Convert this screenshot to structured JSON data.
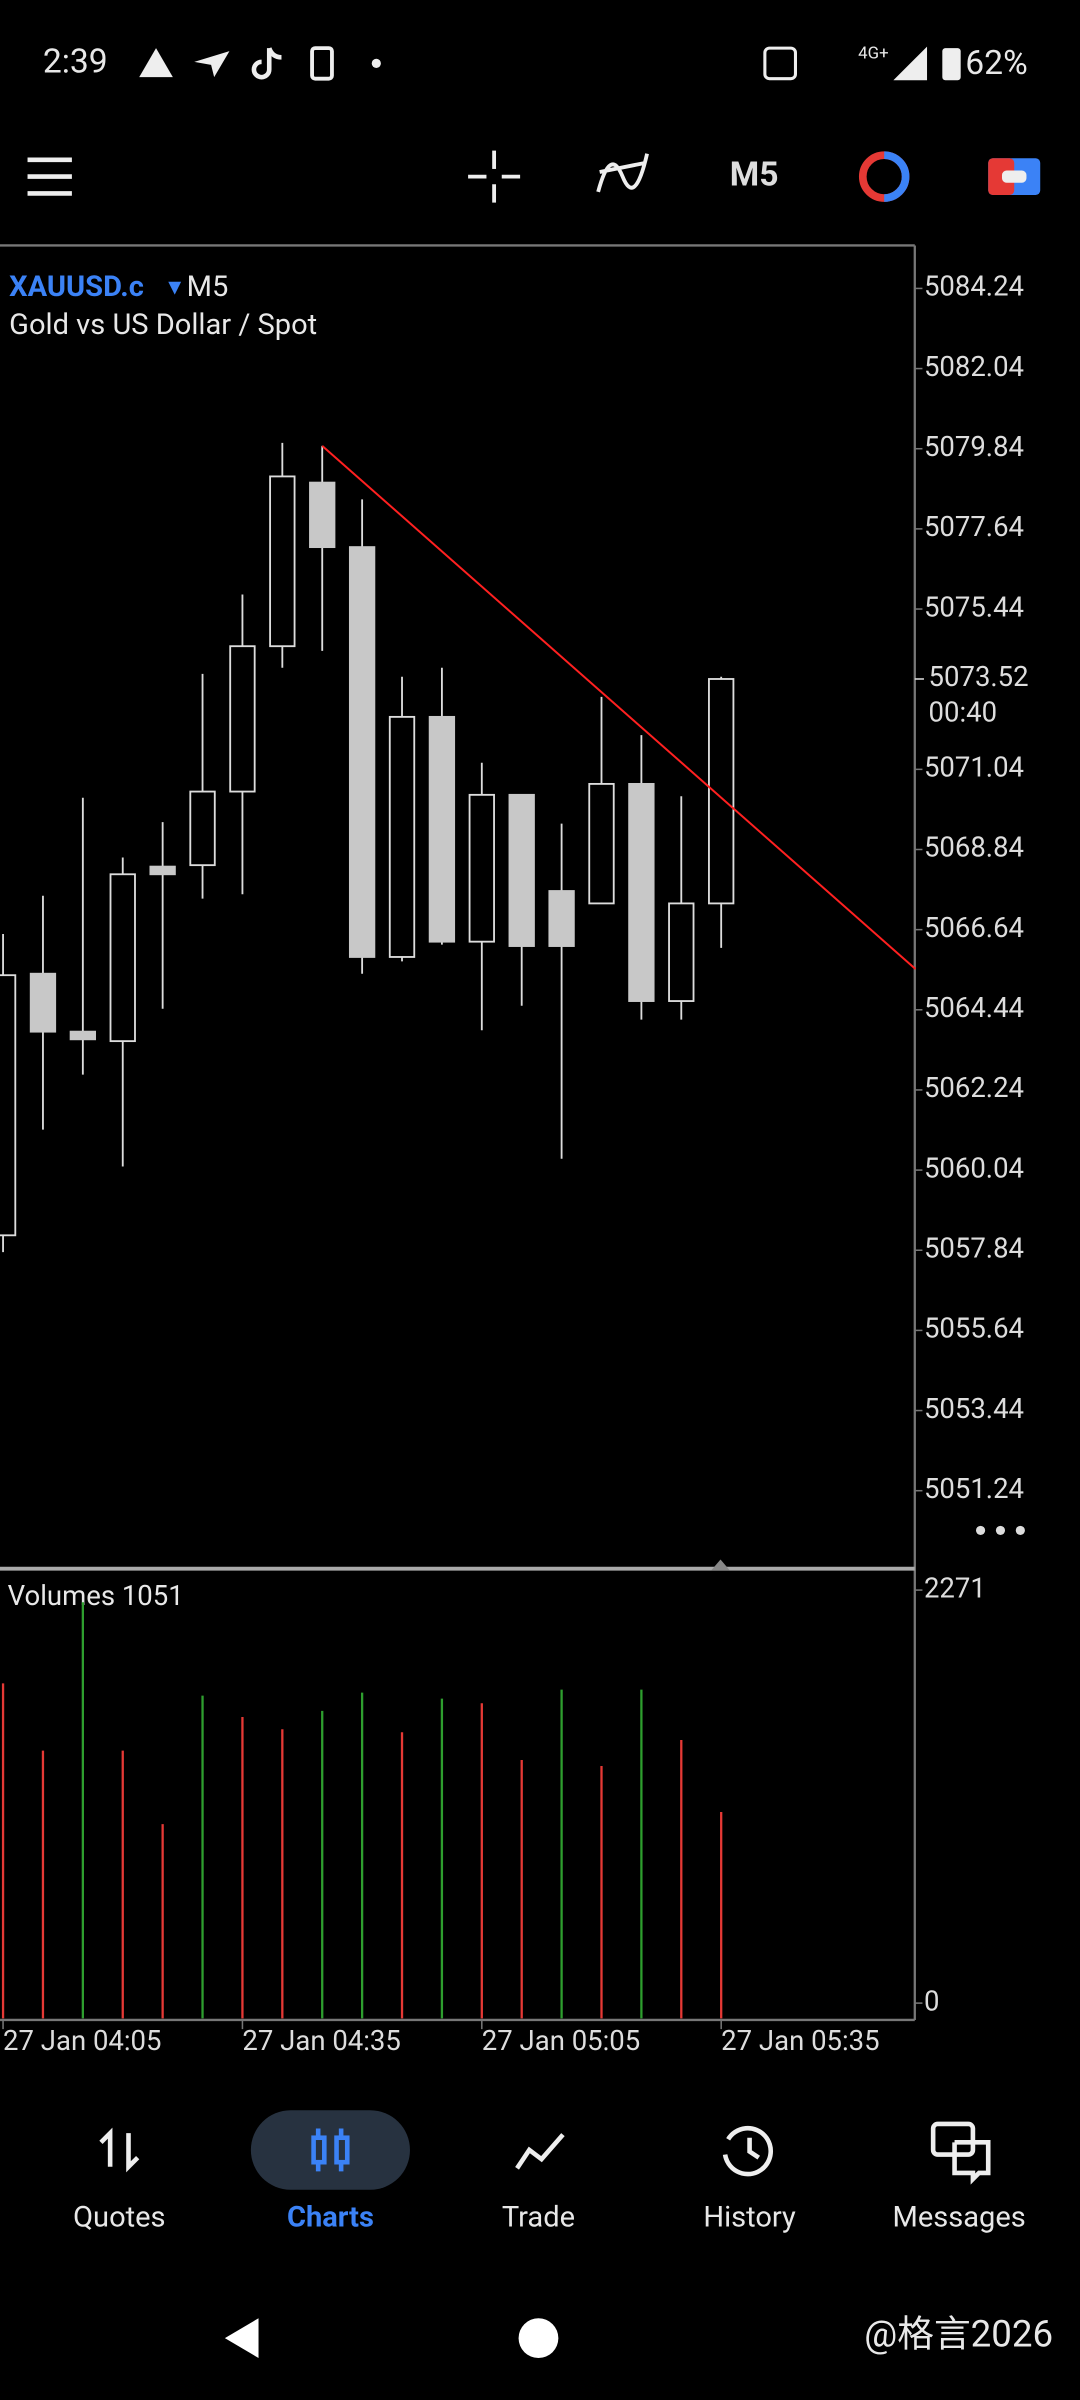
{
  "status_bar": {
    "time": "2:39",
    "network": "4G+",
    "battery": "62%"
  },
  "toolbar": {
    "timeframe": "M5"
  },
  "chart_data": {
    "type": "candlestick",
    "symbol": "XAUUSD.c",
    "timeframe": "M5",
    "subtitle": "Gold vs US Dollar / Spot",
    "categories": [
      "27 Jan 04:05",
      null,
      null,
      null,
      null,
      null,
      "27 Jan 04:35",
      null,
      null,
      null,
      null,
      null,
      "27 Jan 05:05",
      null,
      null,
      null,
      null,
      null,
      "27 Jan 05:35"
    ],
    "open": [
      5058.25,
      5065.43,
      5063.84,
      5063.58,
      5068.37,
      5068.41,
      5070.43,
      5074.42,
      5078.91,
      5077.14,
      5065.89,
      5072.48,
      5066.31,
      5070.34,
      5067.7,
      5067.36,
      5070.64,
      5064.68,
      5067.36
    ],
    "high": [
      5066.52,
      5067.57,
      5070.26,
      5068.62,
      5069.59,
      5073.66,
      5075.84,
      5080.0,
      5079.92,
      5078.45,
      5073.58,
      5073.83,
      5071.22,
      5070.34,
      5069.55,
      5073.03,
      5071.98,
      5070.3,
      5073.58
    ],
    "low": [
      5057.79,
      5061.15,
      5062.66,
      5060.14,
      5064.47,
      5067.49,
      5067.61,
      5073.83,
      5074.29,
      5065.43,
      5065.77,
      5066.23,
      5063.88,
      5064.55,
      5060.35,
      5067.36,
      5064.17,
      5064.17,
      5066.14
    ],
    "close": [
      5065.39,
      5063.84,
      5063.63,
      5068.16,
      5068.16,
      5070.43,
      5074.42,
      5079.08,
      5077.14,
      5065.89,
      5072.48,
      5066.31,
      5070.34,
      5066.19,
      5066.19,
      5070.64,
      5064.68,
      5067.36,
      5073.52
    ],
    "bull_color": "#000000",
    "bear_color": "#c8c8c8",
    "ylim": [
      5049.1,
      5085.42
    ],
    "yticks": [
      5084.24,
      5082.04,
      5079.84,
      5077.64,
      5075.44,
      5071.04,
      5068.84,
      5066.64,
      5064.44,
      5062.24,
      5060.04,
      5057.84,
      5055.64,
      5053.44,
      5051.24
    ],
    "current_price": {
      "value": 5073.52,
      "countdown": "00:40"
    },
    "trendline": {
      "start": [
        8,
        5079.92
      ],
      "end": [
        22.87,
        5065.56
      ],
      "color": "#ff2020"
    },
    "volume": {
      "label": "Volumes 1051",
      "values": [
        1758,
        1388,
        2204,
        1388,
        984,
        1691,
        1573,
        1506,
        1607,
        1707,
        1489,
        1674,
        1649,
        1337,
        1724,
        1304,
        1724,
        1447,
        1051
      ],
      "colors": [
        "#e53935",
        "#e53935",
        "#2e9e2e",
        "#e53935",
        "#e53935",
        "#2e9e2e",
        "#e53935",
        "#e53935",
        "#2e9e2e",
        "#2e9e2e",
        "#e53935",
        "#2e9e2e",
        "#e53935",
        "#e53935",
        "#2e9e2e",
        "#e53935",
        "#2e9e2e",
        "#e53935",
        "#e53935"
      ],
      "ylim": [
        0,
        2271
      ],
      "yticks": [
        0,
        2271
      ]
    }
  },
  "nav": {
    "items": [
      "Quotes",
      "Charts",
      "Trade",
      "History",
      "Messages"
    ]
  },
  "watermark": "@格言2026"
}
